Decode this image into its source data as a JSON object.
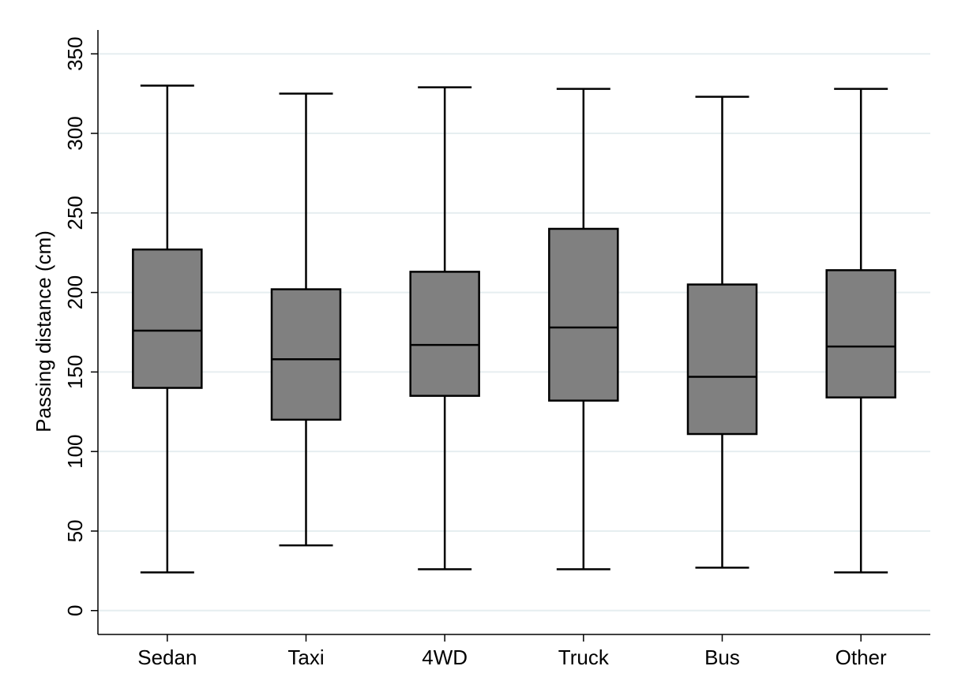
{
  "chart_data": {
    "type": "box",
    "title": "",
    "xlabel": "",
    "ylabel": "Passing distance (cm)",
    "ylim": [
      -15,
      365
    ],
    "yticks": [
      0,
      50,
      100,
      150,
      200,
      250,
      300,
      350
    ],
    "grid": true,
    "categories": [
      "Sedan",
      "Taxi",
      "4WD",
      "Truck",
      "Bus",
      "Other"
    ],
    "boxes": [
      {
        "category": "Sedan",
        "whisker_low": 24,
        "q1": 140,
        "median": 176,
        "q3": 227,
        "whisker_high": 330
      },
      {
        "category": "Taxi",
        "whisker_low": 41,
        "q1": 120,
        "median": 158,
        "q3": 202,
        "whisker_high": 325
      },
      {
        "category": "4WD",
        "whisker_low": 26,
        "q1": 135,
        "median": 167,
        "q3": 213,
        "whisker_high": 329
      },
      {
        "category": "Truck",
        "whisker_low": 26,
        "q1": 132,
        "median": 178,
        "q3": 240,
        "whisker_high": 328
      },
      {
        "category": "Bus",
        "whisker_low": 27,
        "q1": 111,
        "median": 147,
        "q3": 205,
        "whisker_high": 323
      },
      {
        "category": "Other",
        "whisker_low": 24,
        "q1": 134,
        "median": 166,
        "q3": 214,
        "whisker_high": 328
      }
    ],
    "colors": {
      "box_fill": "#808080",
      "stroke": "#000000",
      "grid": "#e6eef0",
      "background": "#ffffff"
    }
  }
}
